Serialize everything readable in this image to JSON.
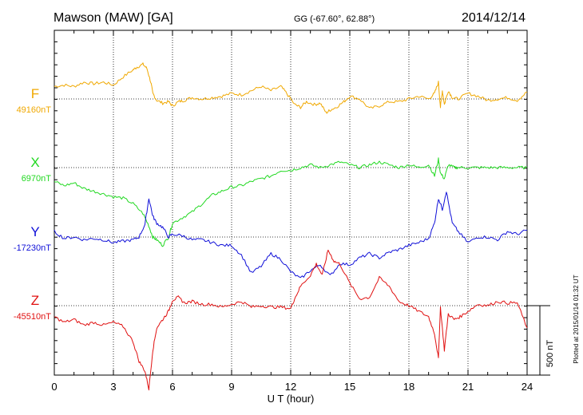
{
  "header": {
    "station": "Mawson (MAW)  [GA]",
    "coords": "GG (-67.60°,  62.88°)",
    "date": "2014/12/14"
  },
  "side_note": "Plotted at 2015/01/14 01:32 UT",
  "chart_data": {
    "type": "line",
    "title": "Mawson (MAW)  [GA]",
    "xlabel": "U T (hour)",
    "xlim": [
      0,
      24
    ],
    "xticks": [
      "0",
      "3",
      "6",
      "9",
      "12",
      "15",
      "18",
      "21",
      "24"
    ],
    "grid": true,
    "scale_bar": {
      "label": "500 nT",
      "value": 500
    },
    "units_per_panel": "nT",
    "series": [
      {
        "name": "F",
        "baseline_label": "49160nT",
        "color": "#f0a800",
        "x": [
          0,
          0.5,
          1,
          1.5,
          2,
          2.5,
          3,
          3.5,
          4,
          4.2,
          4.5,
          4.7,
          4.9,
          5.0,
          5.2,
          5.5,
          5.8,
          6.0,
          6.3,
          6.6,
          7,
          7.5,
          8,
          8.5,
          9,
          9.5,
          10,
          10.5,
          11,
          11.5,
          11.8,
          12.2,
          12.5,
          12.8,
          13.2,
          13.5,
          13.8,
          14.0,
          14.3,
          14.7,
          15,
          15.5,
          16,
          16.5,
          17,
          17.5,
          18,
          18.5,
          19,
          19.3,
          19.5,
          19.6,
          19.7,
          19.8,
          20.0,
          20.2,
          20.5,
          21,
          21.5,
          22,
          22.5,
          23,
          23.5,
          24
        ],
        "values": [
          90,
          100,
          90,
          120,
          110,
          120,
          100,
          160,
          210,
          230,
          250,
          220,
          120,
          40,
          -10,
          -30,
          -20,
          -50,
          -20,
          -10,
          10,
          0,
          10,
          20,
          40,
          30,
          60,
          90,
          60,
          90,
          40,
          -40,
          -60,
          -20,
          -40,
          -30,
          -100,
          -80,
          -60,
          -20,
          20,
          0,
          -70,
          -50,
          -20,
          -20,
          0,
          20,
          0,
          40,
          120,
          -60,
          60,
          -40,
          60,
          10,
          0,
          40,
          20,
          -10,
          0,
          10,
          -10,
          50
        ]
      },
      {
        "name": "X",
        "baseline_label": "6970nT",
        "color": "#20d820",
        "x": [
          0,
          0.5,
          1,
          1.5,
          2,
          2.5,
          3,
          3.5,
          4,
          4.5,
          4.8,
          5.0,
          5.2,
          5.5,
          5.8,
          6.0,
          6.5,
          7,
          7.5,
          8,
          8.5,
          9,
          9.5,
          10,
          10.5,
          11,
          11.5,
          12,
          12.5,
          13,
          13.5,
          14,
          14.5,
          15,
          15.5,
          16,
          16.5,
          17,
          17.5,
          18,
          18.5,
          19,
          19.3,
          19.5,
          19.6,
          19.8,
          20.0,
          20.3,
          20.5,
          21,
          21.5,
          22,
          22.5,
          23,
          23.5,
          24
        ],
        "values": [
          -100,
          -130,
          -110,
          -150,
          -170,
          -190,
          -210,
          -220,
          -260,
          -330,
          -420,
          -500,
          -520,
          -560,
          -500,
          -400,
          -360,
          -320,
          -260,
          -200,
          -170,
          -140,
          -130,
          -100,
          -80,
          -60,
          -20,
          -20,
          0,
          20,
          0,
          20,
          40,
          20,
          0,
          20,
          40,
          20,
          0,
          20,
          0,
          20,
          -60,
          60,
          -40,
          -80,
          20,
          0,
          0,
          0,
          0,
          0,
          0,
          0,
          0,
          0
        ]
      },
      {
        "name": "Y",
        "baseline_label": "-17230nT",
        "color": "#1010d8",
        "x": [
          0,
          0.5,
          1,
          1.5,
          2,
          2.5,
          3,
          3.5,
          4,
          4.3,
          4.6,
          4.8,
          5.0,
          5.2,
          5.5,
          5.8,
          6.0,
          6.5,
          7,
          7.5,
          8,
          8.5,
          9,
          9.5,
          10,
          10.5,
          11,
          11.5,
          12,
          12.5,
          13,
          13.5,
          14,
          14.5,
          15,
          15.5,
          16,
          16.5,
          17,
          17.5,
          18,
          18.5,
          19,
          19.3,
          19.5,
          19.7,
          19.9,
          20.2,
          20.5,
          21,
          21.5,
          22,
          22.5,
          23,
          23.5,
          24
        ],
        "values": [
          40,
          -10,
          0,
          -20,
          -10,
          -20,
          -40,
          -30,
          -20,
          0,
          90,
          280,
          150,
          100,
          70,
          0,
          20,
          10,
          -20,
          -20,
          -40,
          -60,
          -60,
          -130,
          -260,
          -210,
          -120,
          -160,
          -250,
          -300,
          -240,
          -200,
          -280,
          -190,
          -200,
          -150,
          -120,
          -150,
          -110,
          -90,
          -60,
          -40,
          -10,
          100,
          280,
          200,
          330,
          100,
          40,
          -40,
          0,
          0,
          -20,
          40,
          20,
          50
        ]
      },
      {
        "name": "Z",
        "baseline_label": "-45510nT",
        "color": "#e01010",
        "x": [
          0,
          0.5,
          1,
          1.5,
          2,
          2.5,
          3,
          3.5,
          4,
          4.3,
          4.6,
          4.8,
          5.0,
          5.2,
          5.5,
          5.8,
          6.0,
          6.3,
          6.6,
          7,
          7.5,
          8,
          8.5,
          9,
          9.5,
          10,
          10.5,
          11,
          11.5,
          12,
          12.2,
          12.5,
          13,
          13.3,
          13.6,
          13.9,
          14.2,
          14.5,
          15,
          15.5,
          16,
          16.5,
          17,
          17.5,
          18,
          18.5,
          19,
          19.3,
          19.5,
          19.6,
          19.8,
          20.0,
          20.3,
          20.6,
          21,
          21.5,
          22,
          22.5,
          23,
          23.5,
          24
        ],
        "values": [
          -80,
          -120,
          -100,
          -140,
          -120,
          -140,
          -120,
          -150,
          -260,
          -400,
          -470,
          -600,
          -320,
          -160,
          -100,
          -40,
          40,
          60,
          20,
          30,
          10,
          10,
          -10,
          10,
          30,
          -10,
          0,
          -10,
          -10,
          -20,
          50,
          140,
          220,
          300,
          220,
          400,
          320,
          300,
          160,
          50,
          60,
          200,
          140,
          30,
          0,
          -40,
          -80,
          -200,
          -380,
          -10,
          -320,
          -60,
          -100,
          -80,
          -40,
          10,
          0,
          30,
          20,
          20,
          -160
        ]
      }
    ]
  }
}
